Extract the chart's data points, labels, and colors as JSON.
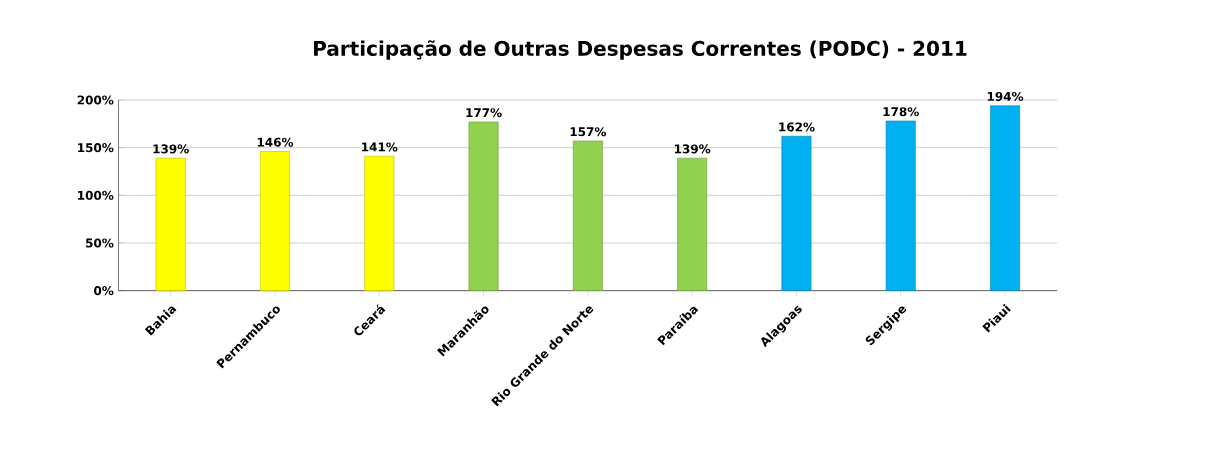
{
  "chart_data": {
    "type": "bar",
    "title": "Participação de Outras Despesas Correntes (PODC) - 2011",
    "categories": [
      "Bahia",
      "Pernambuco",
      "Ceará",
      "Maranhão",
      "Rio Grande do Norte",
      "Paraíba",
      "Alagoas",
      "Sergipe",
      "Piaui"
    ],
    "values": [
      139,
      146,
      141,
      177,
      157,
      139,
      162,
      178,
      194
    ],
    "colors": [
      "#ffff00",
      "#ffff00",
      "#ffff00",
      "#92d050",
      "#92d050",
      "#92d050",
      "#00b0f0",
      "#00b0f0",
      "#00b0f0"
    ],
    "value_labels": [
      "139%",
      "146%",
      "141%",
      "177%",
      "157%",
      "139%",
      "162%",
      "178%",
      "194%"
    ],
    "ylim": [
      0,
      200
    ],
    "yticks": [
      {
        "value": 0,
        "label": "0%"
      },
      {
        "value": 50,
        "label": "50%"
      },
      {
        "value": 100,
        "label": "100%"
      },
      {
        "value": 150,
        "label": "150%"
      },
      {
        "value": 200,
        "label": "200%"
      }
    ],
    "grid": "y"
  }
}
